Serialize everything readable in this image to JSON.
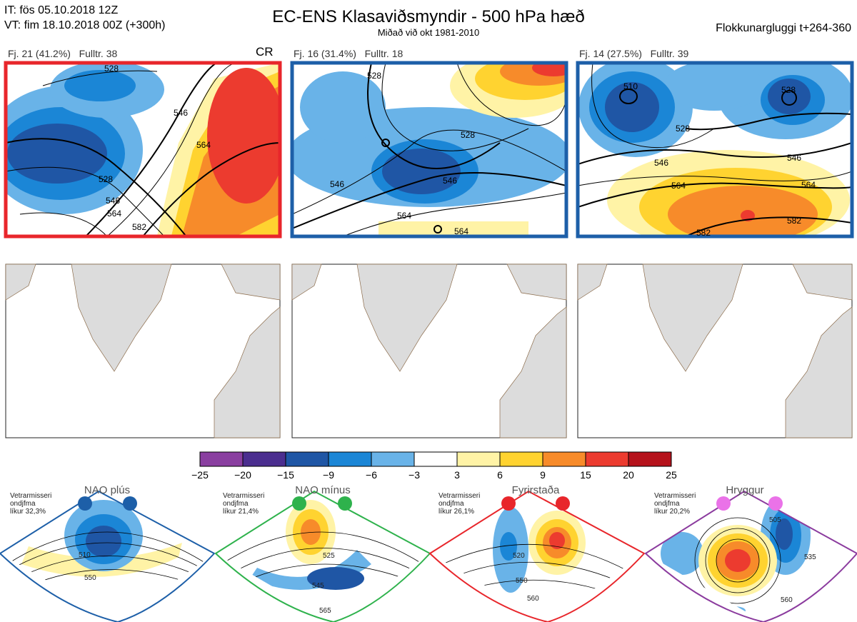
{
  "header": {
    "line1": "IT: fös 05.10.2018 12Z",
    "line2": "VT: fim 18.10.2018 00Z  (+300h)",
    "title": "EC-ENS Klasaviðsmyndir - 500 hPa hæð",
    "subtitle": "Miðað við okt 1981-2010",
    "window": "Flokkunargluggi t+264-360"
  },
  "panels": [
    {
      "label": "Fj. 21 (41.2%)   Fulltr. 38",
      "tag": "CR",
      "border": "#e8262b",
      "contours": [
        "528",
        "546",
        "564",
        "582",
        "546",
        "564",
        "528"
      ]
    },
    {
      "label": "Fj. 16 (31.4%)   Fulltr. 18",
      "tag": "",
      "border": "#1d5fa8",
      "contours": [
        "528",
        "528",
        "546",
        "564",
        "546",
        "564"
      ]
    },
    {
      "label": "Fj. 14 (27.5%)   Fulltr. 39",
      "tag": "",
      "border": "#1d5fa8",
      "contours": [
        "510",
        "528",
        "528",
        "546",
        "546",
        "564",
        "582",
        "564",
        "582"
      ]
    }
  ],
  "chart_data": {
    "type": "heatmap",
    "colorbar": {
      "ticks": [
        "−25",
        "−20",
        "−15",
        "−9",
        "−6",
        "−3",
        "3",
        "6",
        "9",
        "15",
        "20",
        "25"
      ],
      "colors": [
        "#8a3fa0",
        "#4b2e8f",
        "#1f56a5",
        "#1b86d6",
        "#69b3e8",
        "#ffffff",
        "#fff3a6",
        "#ffd330",
        "#f78b2a",
        "#ec3b2f",
        "#b5121b"
      ]
    }
  },
  "regimes": [
    {
      "name": "NAO plús",
      "note": [
        "Vetrarmisseri",
        "ondjfma",
        "líkur 32,3%"
      ],
      "color": "#1d5fa8",
      "contours": [
        "510",
        "550"
      ]
    },
    {
      "name": "NAO mínus",
      "note": [
        "Vetrarmisseri",
        "ondjfma",
        "líkur 21,4%"
      ],
      "color": "#2eb24c",
      "contours": [
        "525",
        "545",
        "565"
      ]
    },
    {
      "name": "Fyrirstaða",
      "note": [
        "Vetrarmisseri",
        "ondjfma",
        "líkur 26,1%"
      ],
      "color": "#e8262b",
      "contours": [
        "520",
        "550",
        "560"
      ]
    },
    {
      "name": "Hryggur",
      "note": [
        "Vetrarmisseri",
        "ondjfma",
        "líkur 20,2%"
      ],
      "color": "#8b3b9e",
      "contours": [
        "505",
        "535",
        "560"
      ]
    }
  ]
}
